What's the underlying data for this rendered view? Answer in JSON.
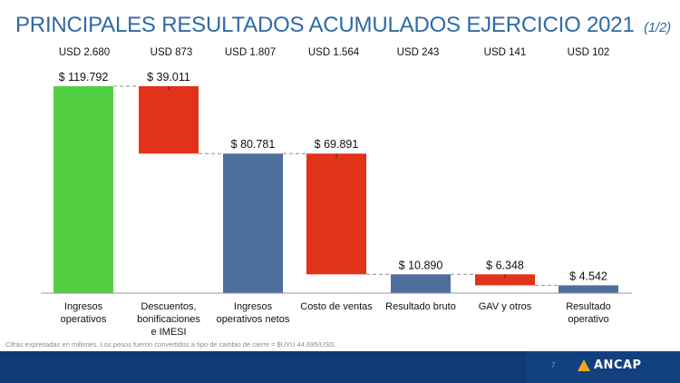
{
  "page": {
    "title": "PRINCIPALES RESULTADOS ACUMULADOS EJERCICIO 2021",
    "title_part": "(1/2)",
    "footnote": "Cifras expresadas en millones. Los pesos fueron convertidos a tipo de cambio de cierre = $UYU 44,695/USD.",
    "page_number": "7",
    "logo_text": "ANCAP"
  },
  "colors": {
    "title": "#2f6aa6",
    "increase": "#52d042",
    "decrease": "#e3321a",
    "total": "#4e6e9e",
    "footer": "#0f3a73",
    "logo_mark": "#f2a71b"
  },
  "chart_data": {
    "type": "bar",
    "subtype": "waterfall",
    "categories": [
      [
        "Ingresos",
        "operativos"
      ],
      [
        "Descuentos,",
        "bonificaciones",
        "e IMESI"
      ],
      [
        "Ingresos",
        "operativos netos"
      ],
      [
        "Costo de ventas"
      ],
      [
        "Resultado bruto"
      ],
      [
        "GAV y otros"
      ],
      [
        "Resultado",
        "operativo"
      ]
    ],
    "values": [
      119792,
      -39011,
      80781,
      -69891,
      10890,
      -6348,
      4542
    ],
    "kinds": [
      "increase",
      "decrease",
      "total",
      "decrease",
      "total",
      "decrease",
      "total"
    ],
    "value_labels": [
      "$ 119.792",
      "$ 39.011",
      "$ 80.781",
      "$ 69.891",
      "$ 10.890",
      "$ 6.348",
      "$ 4.542"
    ],
    "usd_labels": [
      "USD 2.680",
      "USD 873",
      "USD 1.807",
      "USD 1.564",
      "USD 243",
      "USD 141",
      "USD 102"
    ],
    "ylim": [
      0,
      119792
    ],
    "grid": false,
    "legend": "none",
    "connectors": true
  }
}
